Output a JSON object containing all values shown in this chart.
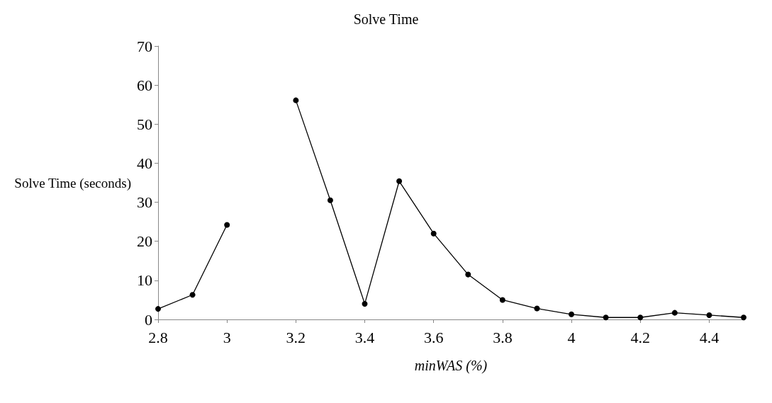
{
  "chart_data": {
    "type": "line",
    "title": "Solve Time",
    "xlabel": "minWAS (%)",
    "ylabel": "Solve Time (seconds)",
    "x": [
      2.8,
      2.9,
      3.0,
      3.1,
      3.2,
      3.3,
      3.4,
      3.5,
      3.6,
      3.7,
      3.8,
      3.9,
      4.0,
      4.1,
      4.2,
      4.3,
      4.4,
      4.5
    ],
    "series": [
      {
        "color": "#000000",
        "values": [
          2.7,
          6.3,
          24.2,
          null,
          56.1,
          30.5,
          4.0,
          35.4,
          22.0,
          11.5,
          5.0,
          2.8,
          1.3,
          0.5,
          0.5,
          1.7,
          1.1,
          0.5
        ]
      }
    ],
    "xlim": [
      2.8,
      4.5
    ],
    "xticks": [
      2.8,
      3,
      3.2,
      3.4,
      3.6,
      3.8,
      4,
      4.2,
      4.4
    ],
    "ylim": [
      0,
      70
    ],
    "yticks": [
      0,
      10,
      20,
      30,
      40,
      50,
      60,
      70
    ],
    "grid": false,
    "marker": "circle",
    "line_style": "solid"
  }
}
